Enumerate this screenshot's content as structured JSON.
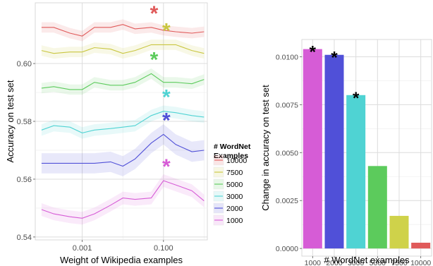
{
  "chart_data": [
    {
      "type": "line",
      "xlabel": "Weight of Wikipedia examples",
      "ylabel": "Accuracy on test set",
      "xscale": "log",
      "xlim": [
        7e-05,
        1.2
      ],
      "ylim": [
        0.539,
        0.621
      ],
      "xticks": [
        {
          "value": 0.001,
          "label": "0.001"
        },
        {
          "value": 0.1,
          "label": "0.100"
        }
      ],
      "yticks": [
        {
          "value": 0.54,
          "label": "0.54"
        },
        {
          "value": 0.56,
          "label": "0.56"
        },
        {
          "value": 0.58,
          "label": "0.58"
        },
        {
          "value": 0.6,
          "label": "0.60"
        }
      ],
      "grid": true,
      "background": "#ffffff",
      "x": [
        0.0001,
        0.0002,
        0.0005,
        0.001,
        0.002,
        0.005,
        0.01,
        0.02,
        0.05,
        0.1,
        0.2,
        0.5,
        1.0
      ],
      "legend": {
        "title_lines": [
          "# WordNet",
          "Examples"
        ],
        "position": "right",
        "order": [
          "10000",
          "7500",
          "5000",
          "3000",
          "2000",
          "1000"
        ]
      },
      "star_marker": "*",
      "series": [
        {
          "name": "10000",
          "color": "#e05a5a",
          "values": [
            0.6125,
            0.6125,
            0.6105,
            0.6095,
            0.6125,
            0.6125,
            0.6135,
            0.612,
            0.6125,
            0.6115,
            0.611,
            0.6105,
            0.611
          ],
          "band": 0.0018,
          "star_x": 0.05
        },
        {
          "name": "7500",
          "color": "#c9c640",
          "values": [
            0.6045,
            0.6035,
            0.604,
            0.604,
            0.6055,
            0.605,
            0.6035,
            0.6045,
            0.6065,
            0.6065,
            0.6065,
            0.6045,
            0.6035
          ],
          "band": 0.0018,
          "star_x": 0.1
        },
        {
          "name": "5000",
          "color": "#5ccb5c",
          "values": [
            0.5915,
            0.592,
            0.591,
            0.591,
            0.5935,
            0.5925,
            0.5925,
            0.5935,
            0.5965,
            0.5935,
            0.5935,
            0.593,
            0.5945
          ],
          "band": 0.0018,
          "star_x": 0.05
        },
        {
          "name": "3000",
          "color": "#4fd3d3",
          "values": [
            0.577,
            0.5785,
            0.578,
            0.576,
            0.577,
            0.5775,
            0.578,
            0.5785,
            0.582,
            0.5835,
            0.583,
            0.582,
            0.5815
          ],
          "band": 0.002,
          "star_x": 0.1
        },
        {
          "name": "2000",
          "color": "#5050d8",
          "values": [
            0.5655,
            0.5655,
            0.5655,
            0.5655,
            0.5655,
            0.566,
            0.5645,
            0.567,
            0.5725,
            0.5755,
            0.572,
            0.5695,
            0.57
          ],
          "band": 0.0035,
          "star_x": 0.1
        },
        {
          "name": "1000",
          "color": "#d65cd6",
          "values": [
            0.5495,
            0.548,
            0.547,
            0.5465,
            0.548,
            0.551,
            0.5535,
            0.553,
            0.5535,
            0.5595,
            0.558,
            0.556,
            0.5525
          ],
          "band": 0.0022,
          "star_x": 0.1
        }
      ]
    },
    {
      "type": "bar",
      "xlabel": "# WordNet examples",
      "ylabel": "Change in accuracy on test set",
      "ylim": [
        -0.0004,
        0.0109
      ],
      "yticks": [
        {
          "value": 0,
          "label": "0.0000"
        },
        {
          "value": 0.0025,
          "label": "0.0025"
        },
        {
          "value": 0.005,
          "label": "0.0050"
        },
        {
          "value": 0.0075,
          "label": "0.0075"
        },
        {
          "value": 0.01,
          "label": "0.0100"
        }
      ],
      "grid": true,
      "background": "#ffffff",
      "categories": [
        "1000",
        "2000",
        "3000",
        "5000",
        "7500",
        "10000"
      ],
      "values": [
        0.0104,
        0.0101,
        0.008,
        0.0043,
        0.0017,
        0.0003
      ],
      "colors": [
        "#d65cd6",
        "#5050d8",
        "#4fd3d3",
        "#5ccb5c",
        "#cfd24a",
        "#e05a5a"
      ],
      "significant": [
        true,
        true,
        true,
        false,
        false,
        false
      ],
      "star_marker": "*",
      "star_color": "#000000"
    }
  ]
}
